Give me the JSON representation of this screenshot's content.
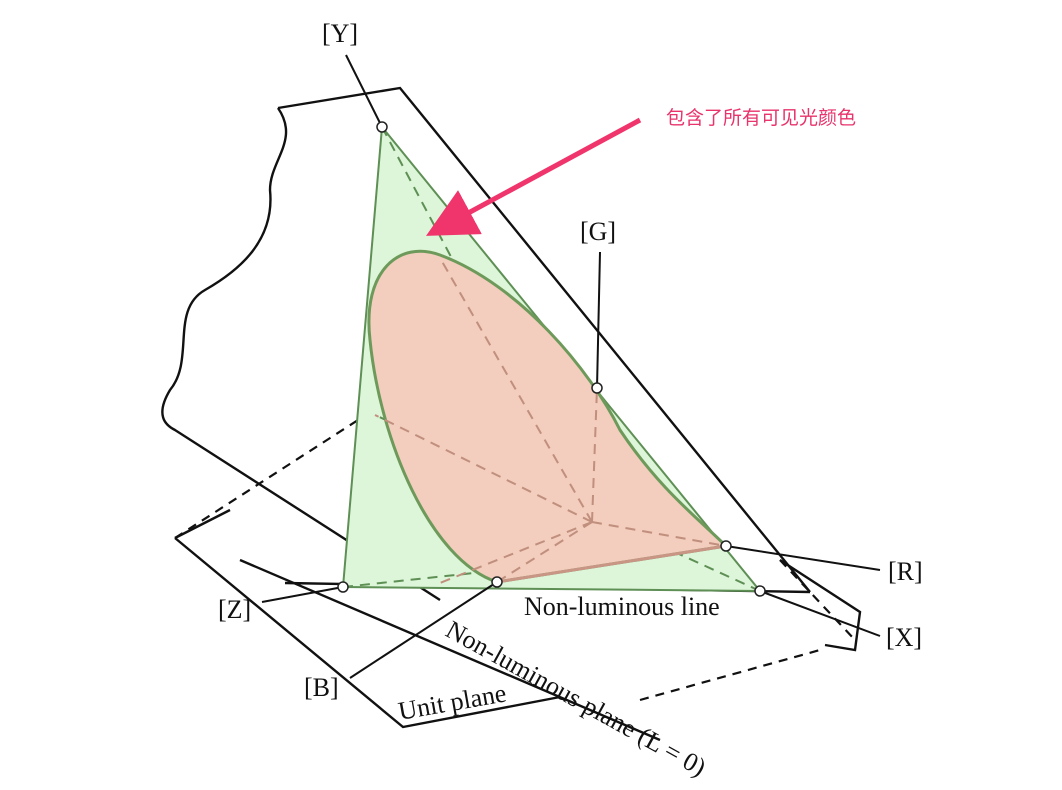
{
  "labels": {
    "y": "[Y]",
    "g": "[G]",
    "r": "[R]",
    "x": "[X]",
    "z": "[Z]",
    "b": "[B]"
  },
  "planes": {
    "line": "Non-luminous line",
    "plane": "Non-luminous plane (L = 0)",
    "unit": "Unit plane"
  },
  "annotation": "包含了所有可见光颜色"
}
